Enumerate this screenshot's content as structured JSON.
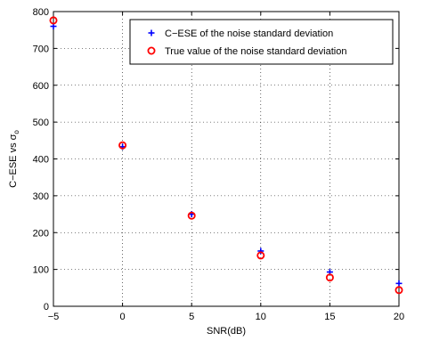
{
  "chart_data": {
    "type": "scatter",
    "xlabel": "SNR(dB)",
    "ylabel": "C−ESE vs σ",
    "ylabel_subscript": "o",
    "xlim": [
      -5,
      20
    ],
    "ylim": [
      0,
      800
    ],
    "xticks": [
      -5,
      0,
      5,
      10,
      15,
      20
    ],
    "yticks": [
      0,
      100,
      200,
      300,
      400,
      500,
      600,
      700,
      800
    ],
    "xtick_labels": [
      "−5",
      "0",
      "5",
      "10",
      "15",
      "20"
    ],
    "ytick_labels": [
      "0",
      "100",
      "200",
      "300",
      "400",
      "500",
      "600",
      "700",
      "800"
    ],
    "grid": true,
    "legend_position": "top-right",
    "series": [
      {
        "name": "C−ESE of the noise standard deviation",
        "marker": "plus",
        "color": "#0000ff",
        "x": [
          -5,
          0,
          5,
          10,
          15,
          20
        ],
        "y": [
          760,
          433,
          250,
          150,
          93,
          62
        ]
      },
      {
        "name": "True value of the noise standard deviation",
        "marker": "circle",
        "color": "#ff0000",
        "x": [
          -5,
          0,
          5,
          10,
          15,
          20
        ],
        "y": [
          776,
          437,
          246,
          138,
          78,
          44
        ]
      }
    ]
  }
}
